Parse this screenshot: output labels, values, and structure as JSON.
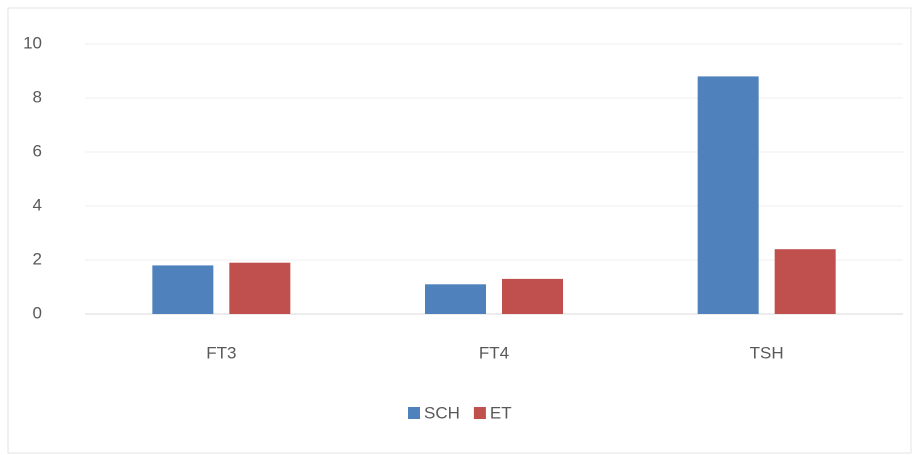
{
  "chart_data": {
    "type": "bar",
    "categories": [
      "FT3",
      "FT4",
      "TSH"
    ],
    "series": [
      {
        "name": "SCH",
        "color": "#4f81bd",
        "values": [
          1.8,
          1.1,
          8.8
        ]
      },
      {
        "name": "ET",
        "color": "#c0504d",
        "values": [
          1.9,
          1.3,
          2.4
        ]
      }
    ],
    "ylim": [
      0,
      10
    ],
    "yticks": [
      0,
      2,
      4,
      6,
      8,
      10
    ],
    "grid": true,
    "legend": "bottom"
  }
}
